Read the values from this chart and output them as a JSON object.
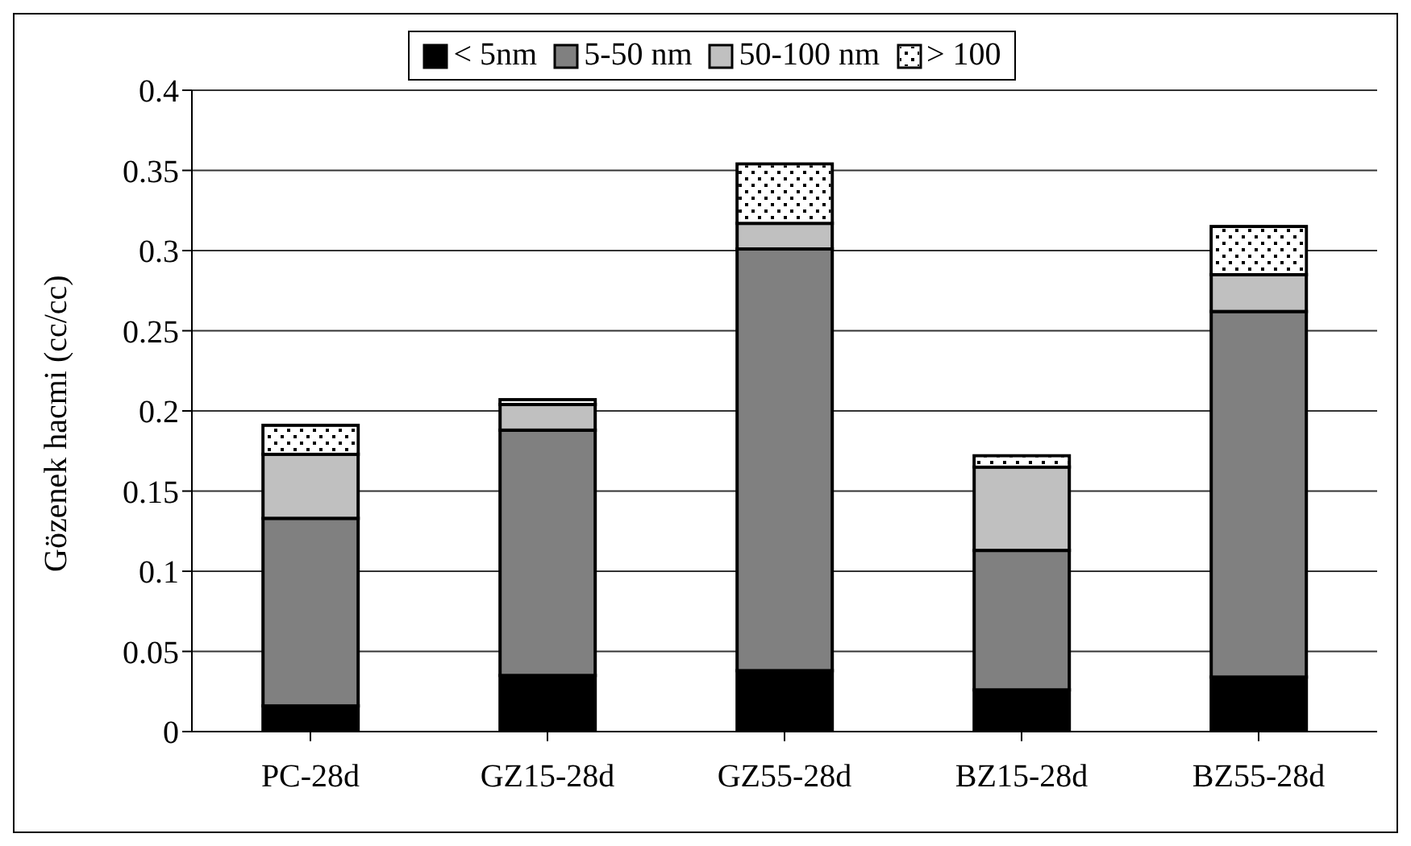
{
  "chart_data": {
    "type": "bar",
    "stacked": true,
    "ylabel": "Gözenek hacmi (cc/cc)",
    "categories": [
      "PC-28d",
      "GZ15-28d",
      "GZ55-28d",
      "BZ15-28d",
      "BZ55-28d"
    ],
    "series": [
      {
        "name": "< 5nm",
        "color": "#000000",
        "values": [
          0.016,
          0.035,
          0.038,
          0.026,
          0.034
        ]
      },
      {
        "name": "5-50 nm",
        "color": "#808080",
        "values": [
          0.117,
          0.153,
          0.263,
          0.087,
          0.228
        ]
      },
      {
        "name": "50-100 nm",
        "color": "#c0c0c0",
        "values": [
          0.04,
          0.016,
          0.016,
          0.052,
          0.023
        ]
      },
      {
        "name": "> 100",
        "color": "#ffffff",
        "values": [
          0.018,
          0.003,
          0.037,
          0.007,
          0.03
        ]
      }
    ],
    "ylim": [
      0,
      0.4
    ],
    "yticks": [
      0,
      0.05,
      0.1,
      0.15,
      0.2,
      0.25,
      0.3,
      0.35,
      0.4
    ],
    "grid": "y",
    "legend": "top"
  }
}
